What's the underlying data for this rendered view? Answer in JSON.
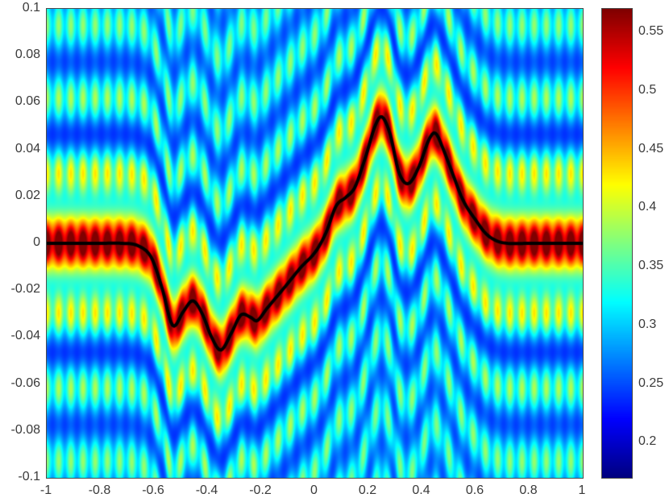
{
  "chart_data": {
    "type": "heatmap",
    "title": "",
    "xlabel": "",
    "ylabel": "",
    "x_range": [
      -1,
      1
    ],
    "y_range": [
      -0.1,
      0.1
    ],
    "x_ticks": [
      {
        "v": -1,
        "label": "-1"
      },
      {
        "v": -0.8,
        "label": "-0.8"
      },
      {
        "v": -0.6,
        "label": "-0.6"
      },
      {
        "v": -0.4,
        "label": "-0.4"
      },
      {
        "v": -0.2,
        "label": "-0.2"
      },
      {
        "v": 0,
        "label": "0"
      },
      {
        "v": 0.2,
        "label": "0.2"
      },
      {
        "v": 0.4,
        "label": "0.4"
      },
      {
        "v": 0.6,
        "label": "0.6"
      },
      {
        "v": 0.8,
        "label": "0.8"
      },
      {
        "v": 1,
        "label": "1"
      }
    ],
    "y_ticks": [
      {
        "v": 0.1,
        "label": "0.1"
      },
      {
        "v": 0.08,
        "label": "0.08"
      },
      {
        "v": 0.06,
        "label": "0.06"
      },
      {
        "v": 0.04,
        "label": "0.04"
      },
      {
        "v": 0.02,
        "label": "0.02"
      },
      {
        "v": 0,
        "label": "0"
      },
      {
        "v": -0.02,
        "label": "-0.02"
      },
      {
        "v": -0.04,
        "label": "-0.04"
      },
      {
        "v": -0.06,
        "label": "-0.06"
      },
      {
        "v": -0.08,
        "label": "-0.08"
      },
      {
        "v": -0.1,
        "label": "-0.1"
      }
    ],
    "colormap": "jet",
    "clim": [
      0.17,
      0.57
    ],
    "colorbar_ticks": [
      {
        "v": 0.55,
        "label": "0.55"
      },
      {
        "v": 0.5,
        "label": "0.5"
      },
      {
        "v": 0.45,
        "label": "0.45"
      },
      {
        "v": 0.4,
        "label": "0.4"
      },
      {
        "v": 0.35,
        "label": "0.35"
      },
      {
        "v": 0.3,
        "label": "0.3"
      },
      {
        "v": 0.25,
        "label": "0.25"
      },
      {
        "v": 0.2,
        "label": "0.2"
      }
    ],
    "overlay_curve": {
      "color": "#000000",
      "width": 4,
      "points": [
        [
          -1.0,
          0.0
        ],
        [
          -0.9,
          0.0
        ],
        [
          -0.8,
          0.0
        ],
        [
          -0.72,
          0.0
        ],
        [
          -0.66,
          -0.001
        ],
        [
          -0.61,
          -0.006
        ],
        [
          -0.57,
          -0.019
        ],
        [
          -0.53,
          -0.035
        ],
        [
          -0.49,
          -0.029
        ],
        [
          -0.455,
          -0.0245
        ],
        [
          -0.42,
          -0.03
        ],
        [
          -0.385,
          -0.04
        ],
        [
          -0.35,
          -0.0455
        ],
        [
          -0.31,
          -0.038
        ],
        [
          -0.275,
          -0.0305
        ],
        [
          -0.24,
          -0.0315
        ],
        [
          -0.215,
          -0.033
        ],
        [
          -0.18,
          -0.028
        ],
        [
          -0.14,
          -0.0225
        ],
        [
          -0.1,
          -0.017
        ],
        [
          -0.05,
          -0.01
        ],
        [
          0.0,
          -0.004
        ],
        [
          0.04,
          0.004
        ],
        [
          0.08,
          0.016
        ],
        [
          0.115,
          0.0195
        ],
        [
          0.15,
          0.024
        ],
        [
          0.19,
          0.037
        ],
        [
          0.225,
          0.05
        ],
        [
          0.25,
          0.054
        ],
        [
          0.28,
          0.047
        ],
        [
          0.315,
          0.03
        ],
        [
          0.35,
          0.0255
        ],
        [
          0.39,
          0.033
        ],
        [
          0.425,
          0.044
        ],
        [
          0.45,
          0.047
        ],
        [
          0.48,
          0.04
        ],
        [
          0.52,
          0.028
        ],
        [
          0.555,
          0.018
        ],
        [
          0.6,
          0.01
        ],
        [
          0.64,
          0.004
        ],
        [
          0.68,
          0.001
        ],
        [
          0.72,
          0.0
        ],
        [
          0.8,
          0.0
        ],
        [
          0.9,
          0.0
        ],
        [
          1.0,
          0.0
        ]
      ]
    },
    "field_model": {
      "baseline": 0.3,
      "ridge_amp": 0.2,
      "ridge_sigma": 0.015,
      "fringe_amp": 0.055,
      "fringe_floor": 0.025,
      "fringe_decay": 0.09,
      "fringe_period": 0.031,
      "fringe_stripe_mod": 0.3,
      "stripe_amp": 0.022,
      "stripe_period": 0.0455
    }
  },
  "style": {
    "tick_text_color": "#3a3a3a",
    "axes_border_color": "#4a4a4a",
    "figure_background": "#ffffff"
  }
}
